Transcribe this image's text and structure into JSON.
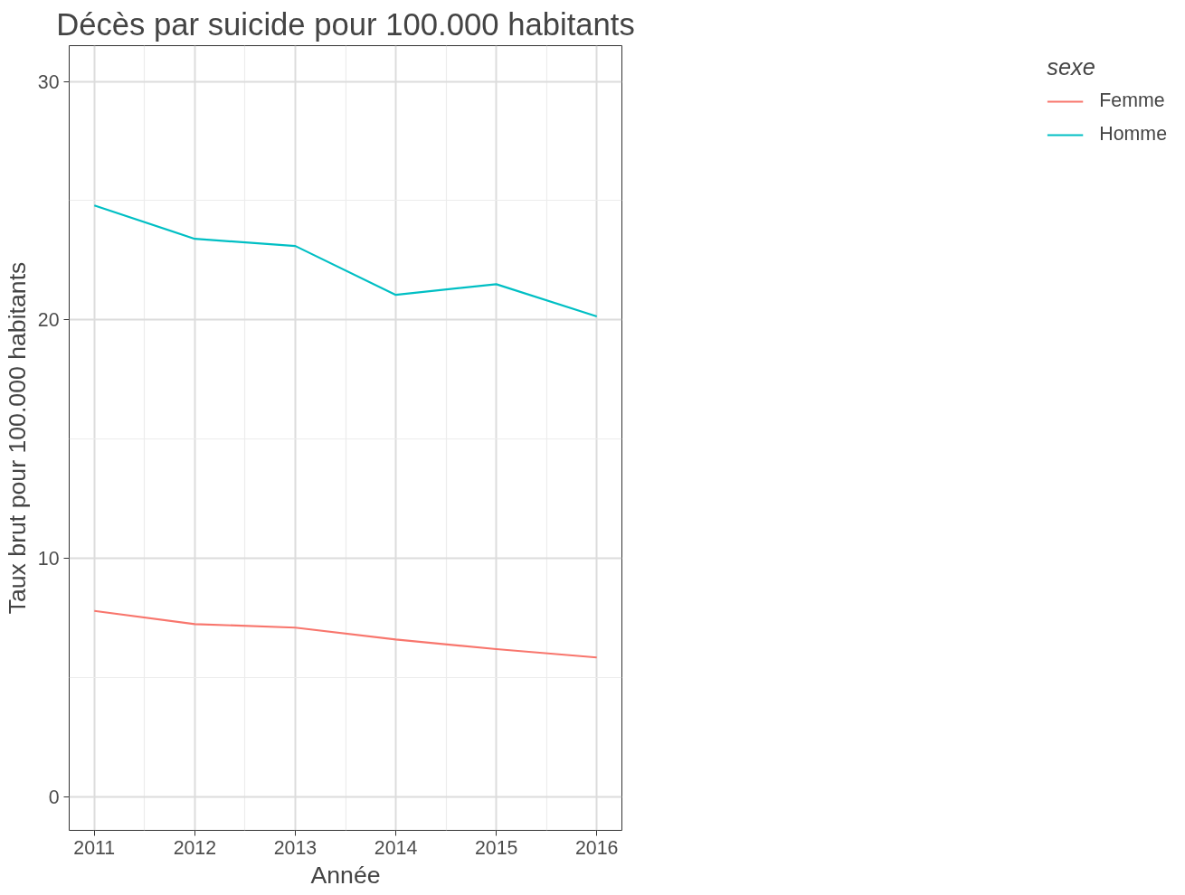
{
  "chart_data": {
    "type": "line",
    "title": "Décès par suicide pour 100.000 habitants",
    "xlabel": "Année",
    "ylabel": "Taux brut pour 100.000 habitants",
    "legend_title": "sexe",
    "x": [
      2011,
      2012,
      2013,
      2014,
      2015,
      2016
    ],
    "series": [
      {
        "name": "Femme",
        "color": "#f8766d",
        "values": [
          7.8,
          7.25,
          7.1,
          6.6,
          6.2,
          5.85
        ]
      },
      {
        "name": "Homme",
        "color": "#00bfc4",
        "values": [
          24.8,
          23.4,
          23.1,
          21.05,
          21.5,
          20.15
        ]
      }
    ],
    "xlim": [
      2010.75,
      2016.25
    ],
    "ylim": [
      -1.4,
      31.5
    ],
    "xticks": [
      2011,
      2012,
      2013,
      2014,
      2015,
      2016
    ],
    "yticks": [
      0,
      10,
      20,
      30
    ],
    "grid": true,
    "legend": "right",
    "line_style": "solid",
    "marker": "none"
  }
}
